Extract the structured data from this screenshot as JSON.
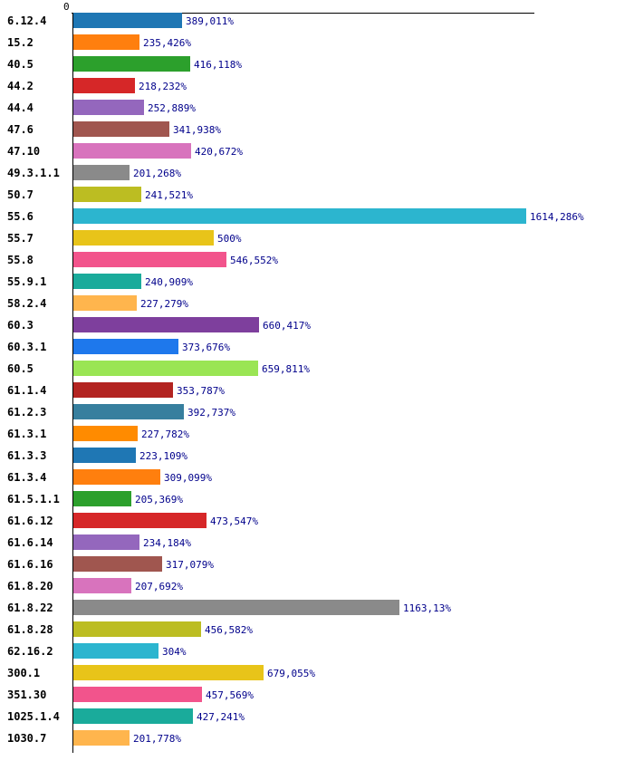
{
  "page": {
    "background_color": "#ffffff"
  },
  "chart_data": {
    "type": "bar",
    "orientation": "horizontal",
    "title": "",
    "xlabel": "",
    "ylabel": "",
    "grid": false,
    "legend": false,
    "x_axis": {
      "tick_labels": [
        "0"
      ],
      "min": 0,
      "max": 1614.286
    },
    "value_label_color": "#00008b",
    "category_label_color": "#000000",
    "axis_color": "#000000",
    "categories": [
      "6.12.4",
      "15.2",
      "40.5",
      "44.2",
      "44.4",
      "47.6",
      "47.10",
      "49.3.1.1",
      "50.7",
      "55.6",
      "55.7",
      "55.8",
      "55.9.1",
      "58.2.4",
      "60.3",
      "60.3.1",
      "60.5",
      "61.1.4",
      "61.2.3",
      "61.3.1",
      "61.3.3",
      "61.3.4",
      "61.5.1.1",
      "61.6.12",
      "61.6.14",
      "61.6.16",
      "61.8.20",
      "61.8.22",
      "61.8.28",
      "62.16.2",
      "300.1",
      "351.30",
      "1025.1.4",
      "1030.7"
    ],
    "values": [
      389.011,
      235.426,
      416.118,
      218.232,
      252.889,
      341.938,
      420.672,
      201.268,
      241.521,
      1614.286,
      500,
      546.552,
      240.909,
      227.279,
      660.417,
      373.676,
      659.811,
      353.787,
      392.737,
      227.782,
      223.109,
      309.099,
      205.369,
      473.547,
      234.184,
      317.079,
      207.692,
      1163.13,
      456.582,
      304,
      679.055,
      457.569,
      427.241,
      201.778
    ],
    "value_labels": [
      "389,011%",
      "235,426%",
      "416,118%",
      "218,232%",
      "252,889%",
      "341,938%",
      "420,672%",
      "201,268%",
      "241,521%",
      "1614,286%",
      "500%",
      "546,552%",
      "240,909%",
      "227,279%",
      "660,417%",
      "373,676%",
      "659,811%",
      "353,787%",
      "392,737%",
      "227,782%",
      "223,109%",
      "309,099%",
      "205,369%",
      "473,547%",
      "234,184%",
      "317,079%",
      "207,692%",
      "1163,13%",
      "456,582%",
      "304%",
      "679,055%",
      "457,569%",
      "427,241%",
      "201,778%"
    ],
    "colors": [
      "#1f77b4",
      "#ff7f0e",
      "#2ca02c",
      "#d62728",
      "#9467bd",
      "#a0564f",
      "#d873bd",
      "#8a8a8a",
      "#bcbd22",
      "#2cb5cf",
      "#e8c419",
      "#f2548c",
      "#1aab9b",
      "#ffb54d",
      "#7e3f9d",
      "#1e78ec",
      "#9ae554",
      "#b32421",
      "#377f9e",
      "#ff8b00",
      "#1f77b4",
      "#ff7f0e",
      "#2ca02c",
      "#d62728",
      "#9467bd",
      "#a0564f",
      "#d873bd",
      "#8a8a8a",
      "#bcbd22",
      "#2cb5cf",
      "#e8c419",
      "#f2548c",
      "#1aab9b",
      "#ffb54d"
    ]
  }
}
